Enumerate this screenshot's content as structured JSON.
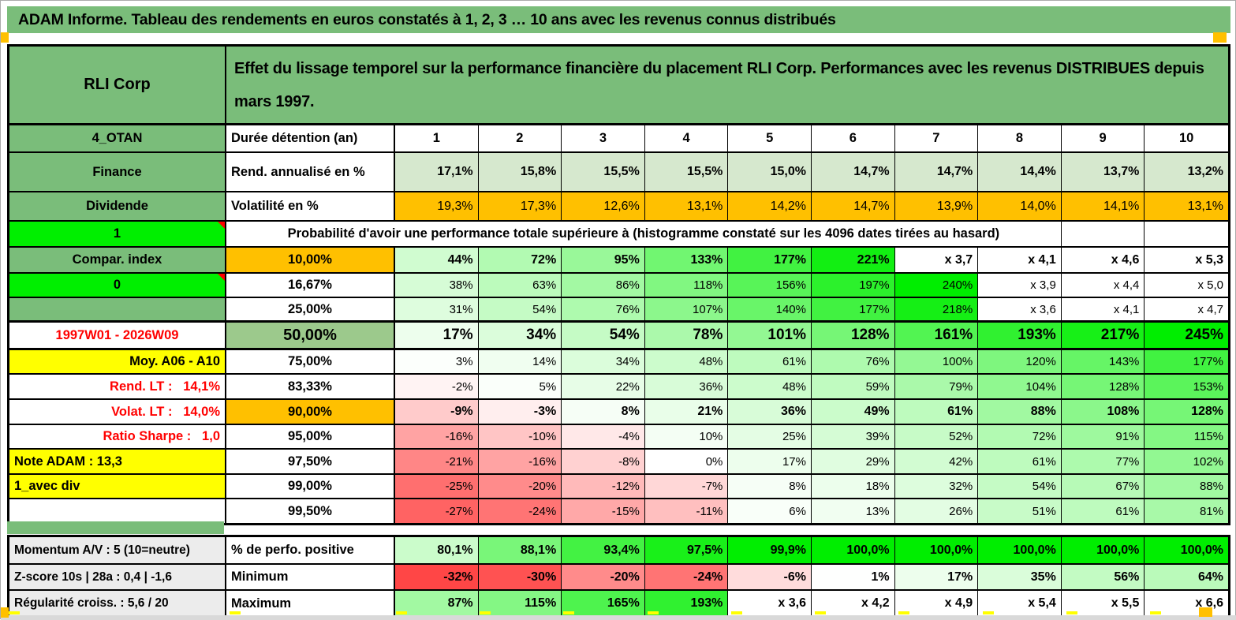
{
  "title": "ADAM Informe. Tableau des rendements en euros constatés à 1, 2, 3 … 10 ans avec les revenus connus distribués",
  "colors": {
    "green": "#7ABD7A",
    "midgreen": "#9CC98C",
    "bright_green": "#00EF00",
    "orange": "#FFC000",
    "yellow": "#FFFF00",
    "grey": "#ECECEC",
    "red": "#FF0000",
    "annualized_bg": "#D6E8CE",
    "strip_grey": "#D9D9D9"
  },
  "header": {
    "fund_name": "RLI Corp",
    "description": "Effet du lissage temporel sur la performance financière du placement RLI Corp. Performances avec les revenus DISTRIBUES depuis mars 1997."
  },
  "duree": {
    "a": "4_OTAN",
    "b": "Durée détention (an)",
    "cells": [
      "1",
      "2",
      "3",
      "4",
      "5",
      "6",
      "7",
      "8",
      "9",
      "10"
    ]
  },
  "annualized": {
    "a": "Finance",
    "b": "Rend. annualisé en %",
    "cells": [
      "17,1%",
      "15,8%",
      "15,5%",
      "15,5%",
      "15,0%",
      "14,7%",
      "14,7%",
      "14,4%",
      "13,7%",
      "13,2%"
    ]
  },
  "volatility": {
    "a": "Dividende",
    "b": "Volatilité en %",
    "cells": [
      "19,3%",
      "17,3%",
      "12,6%",
      "13,1%",
      "14,2%",
      "14,7%",
      "13,9%",
      "14,0%",
      "14,1%",
      "13,1%"
    ]
  },
  "probability": {
    "a": "1",
    "text": "Probabilité d'avoir une performance totale supérieure à (histogramme constaté sur les 4096 dates tirées au hasard)"
  },
  "matrix": {
    "rows": [
      {
        "a": "Compar. index",
        "b": "10,00%",
        "cells": [
          "44%",
          "72%",
          "95%",
          "133%",
          "177%",
          "221%",
          "x 3,7",
          "x 4,1",
          "x 4,6",
          "x 5,3"
        ]
      },
      {
        "a": "0",
        "b": "16,67%",
        "cells": [
          "38%",
          "63%",
          "86%",
          "118%",
          "156%",
          "197%",
          "240%",
          "x 3,9",
          "x 4,4",
          "x 5,0"
        ]
      },
      {
        "a": "",
        "b": "25,00%",
        "cells": [
          "31%",
          "54%",
          "76%",
          "107%",
          "140%",
          "177%",
          "218%",
          "x 3,6",
          "x 4,1",
          "x 4,7"
        ]
      },
      {
        "a": "1997W01 - 2026W09",
        "b": "50,00%",
        "cells": [
          "17%",
          "34%",
          "54%",
          "78%",
          "101%",
          "128%",
          "161%",
          "193%",
          "217%",
          "245%"
        ]
      },
      {
        "a": "Moy. A06 - A10",
        "b": "75,00%",
        "cells": [
          "3%",
          "14%",
          "34%",
          "48%",
          "61%",
          "76%",
          "100%",
          "120%",
          "143%",
          "177%"
        ]
      },
      {
        "a": "Rend. LT :   14,1%",
        "b": "83,33%",
        "cells": [
          "-2%",
          "5%",
          "22%",
          "36%",
          "48%",
          "59%",
          "79%",
          "104%",
          "128%",
          "153%"
        ]
      },
      {
        "a": "Volat. LT :   14,0%",
        "b": "90,00%",
        "cells": [
          "-9%",
          "-3%",
          "8%",
          "21%",
          "36%",
          "49%",
          "61%",
          "88%",
          "108%",
          "128%"
        ]
      },
      {
        "a": "Ratio Sharpe :   1,0",
        "b": "95,00%",
        "cells": [
          "-16%",
          "-10%",
          "-4%",
          "10%",
          "25%",
          "39%",
          "52%",
          "72%",
          "91%",
          "115%"
        ]
      },
      {
        "a": "Note ADAM : 13,3",
        "b": "97,50%",
        "cells": [
          "-21%",
          "-16%",
          "-8%",
          "0%",
          "17%",
          "29%",
          "42%",
          "61%",
          "77%",
          "102%"
        ]
      },
      {
        "a": "1_avec div",
        "b": "99,00%",
        "cells": [
          "-25%",
          "-20%",
          "-12%",
          "-7%",
          "8%",
          "18%",
          "32%",
          "54%",
          "67%",
          "88%"
        ]
      },
      {
        "a": "",
        "b": "99,50%",
        "cells": [
          "-27%",
          "-24%",
          "-15%",
          "-11%",
          "6%",
          "13%",
          "26%",
          "51%",
          "61%",
          "81%"
        ]
      }
    ]
  },
  "bottom": {
    "rows": [
      {
        "a": "Momentum A/V : 5 (10=neutre)",
        "b": "% de perfo. positive",
        "cells": [
          "80,1%",
          "88,1%",
          "93,4%",
          "97,5%",
          "99,9%",
          "100,0%",
          "100,0%",
          "100,0%",
          "100,0%",
          "100,0%"
        ]
      },
      {
        "a": "Z-score 10s | 28a : 0,4 | -1,6",
        "b": "Minimum",
        "cells": [
          "-32%",
          "-30%",
          "-20%",
          "-24%",
          "-6%",
          "1%",
          "17%",
          "35%",
          "56%",
          "64%"
        ]
      },
      {
        "a": "Régularité croiss. : 5,6 / 20",
        "b": "Maximum",
        "cells": [
          "87%",
          "115%",
          "165%",
          "193%",
          "x 3,6",
          "x 4,2",
          "x 4,9",
          "x 5,4",
          "x 5,5",
          "x 6,6"
        ]
      }
    ]
  }
}
